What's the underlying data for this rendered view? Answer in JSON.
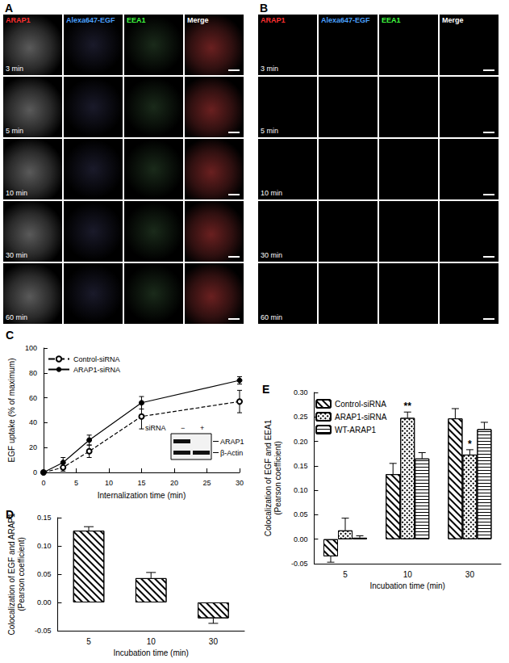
{
  "panels": [
    {
      "label": "A",
      "columns": [
        "ARAP1",
        "Alexa647-EGF",
        "EEA1",
        "Merge"
      ],
      "column_colors": [
        "#ff3030",
        "#4aa0ff",
        "#40ff40",
        "#ffffff"
      ],
      "rows": [
        "3 min",
        "5 min",
        "10 min",
        "30 min",
        "60 min"
      ]
    },
    {
      "label": "B",
      "columns": [
        "ARAP1",
        "Alexa647-EGF",
        "EEA1",
        "Merge"
      ],
      "column_colors": [
        "#ff3030",
        "#4aa0ff",
        "#40ff40",
        "#ffffff"
      ],
      "rows": [
        "3 min",
        "5 min",
        "10 min",
        "30 min",
        "60 min"
      ]
    }
  ],
  "chart_data": [
    {
      "type": "line",
      "title": "C",
      "x_label": "Internalization time (min)",
      "y_label": "EGF uptake (% of maximum)",
      "xlim": [
        0,
        30
      ],
      "xticks": [
        0,
        5,
        10,
        15,
        20,
        25,
        30
      ],
      "ylim": [
        0,
        100
      ],
      "yticks": [
        0,
        20,
        40,
        60,
        80,
        100
      ],
      "legend": "top-left",
      "x": [
        0,
        3,
        7,
        15,
        30
      ],
      "series": [
        {
          "name": "Control-siRNA",
          "color": "#000000",
          "marker": "open_circle",
          "line_style": "dashed",
          "values": [
            0,
            4,
            17,
            45,
            57
          ],
          "errors": [
            0,
            3,
            5,
            10,
            9
          ]
        },
        {
          "name": "ARAP1-siRNA",
          "color": "#000000",
          "marker": "filled_circle",
          "line_style": "solid",
          "values": [
            0,
            8,
            26,
            56,
            74
          ],
          "errors": [
            0,
            4,
            4,
            5,
            3
          ]
        }
      ],
      "inset": {
        "header": "siRNA",
        "lanes": [
          "−",
          "+"
        ],
        "rows": [
          "ARAP1",
          "β-Actin"
        ]
      }
    },
    {
      "type": "bar",
      "title": "D",
      "x_label": "Incubation time (min)",
      "y_label": "Colocalization of EGF and ARAP1\n(Pearson coefficient)",
      "categories": [
        "5",
        "10",
        "30"
      ],
      "ylim": [
        -0.05,
        0.15
      ],
      "yticks": [
        -0.05,
        {
          "value": 0,
          "label": "0.00"
        },
        0.05,
        {
          "value": 0.1,
          "label": "0.10"
        },
        0.15
      ],
      "series": [
        {
          "name": "EGF and ARAP1",
          "color": "#ffffff",
          "marker": "diagonal",
          "values": [
            0.127,
            0.043,
            -0.028
          ],
          "errors": [
            0.007,
            0.01,
            0.009
          ]
        }
      ]
    },
    {
      "type": "bar",
      "title": "E",
      "x_label": "Incubation time (min)",
      "y_label": "Colocalization of EGF and EEA1\n(Pearson coefficient)",
      "categories": [
        "5",
        "10",
        "30"
      ],
      "ylim": [
        -0.05,
        0.3
      ],
      "yticks": [
        -0.05,
        {
          "value": 0,
          "label": "0.00"
        },
        0.05,
        {
          "value": 0.1,
          "label": "0.10"
        },
        0.15,
        {
          "value": 0.2,
          "label": "0.20"
        },
        0.25,
        {
          "value": 0.3,
          "label": "0.30"
        }
      ],
      "legend": "top-left",
      "series": [
        {
          "name": "Control-siRNA",
          "color": "#ffffff",
          "marker": "diagonal",
          "values": [
            -0.035,
            0.133,
            0.247
          ],
          "errors": [
            0.012,
            0.022,
            0.02
          ]
        },
        {
          "name": "ARAP1-siRNA",
          "color": "#ffffff",
          "marker": "crosshatch",
          "values": [
            0.018,
            0.248,
            0.173
          ],
          "errors": [
            0.025,
            0.012,
            0.01
          ]
        },
        {
          "name": "WT-ARAP1",
          "color": "#ffffff",
          "marker": "horizontal",
          "values": [
            0.003,
            0.165,
            0.225
          ],
          "errors": [
            0.004,
            0.012,
            0.014
          ]
        }
      ],
      "annotations": [
        {
          "text": "**",
          "category": "10",
          "series": "ARAP1-siRNA"
        },
        {
          "text": "*",
          "category": "30",
          "series": "ARAP1-siRNA"
        }
      ]
    }
  ]
}
